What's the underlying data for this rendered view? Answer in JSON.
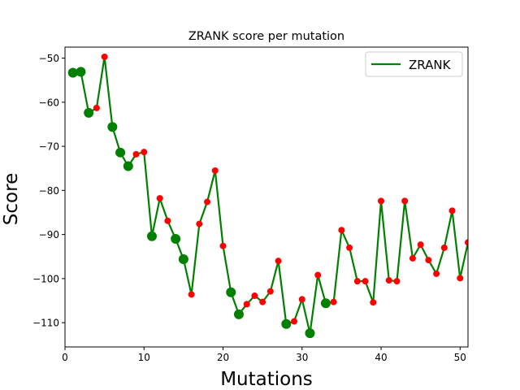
{
  "chart_data": {
    "type": "line",
    "title": "ZRANK score per mutation",
    "xlabel": "Mutations",
    "ylabel": "Score",
    "xlim": [
      0,
      51
    ],
    "ylim": [
      -115.5,
      -47.5
    ],
    "xticks": [
      0,
      10,
      20,
      30,
      40,
      50
    ],
    "yticks": [
      -110,
      -100,
      -90,
      -80,
      -70,
      -60,
      -50
    ],
    "grid": false,
    "legend_position": "top-right",
    "series": [
      {
        "name": "ZRANK",
        "color": "#008000",
        "x": [
          1,
          2,
          3,
          4,
          5,
          6,
          7,
          8,
          9,
          10,
          11,
          12,
          13,
          14,
          15,
          16,
          17,
          18,
          19,
          20,
          21,
          22,
          23,
          24,
          25,
          26,
          27,
          28,
          29,
          30,
          31,
          32,
          33,
          34,
          35,
          36,
          37,
          38,
          39,
          40,
          41,
          42,
          43,
          44,
          45,
          46,
          47,
          48,
          49,
          50,
          51
        ],
        "y": [
          -53.3,
          -53.1,
          -62.4,
          -61.3,
          -49.7,
          -65.6,
          -71.4,
          -74.5,
          -71.8,
          -71.3,
          -90.4,
          -81.8,
          -86.9,
          -91.0,
          -95.6,
          -103.6,
          -87.6,
          -82.6,
          -75.5,
          -92.6,
          -103.1,
          -108.1,
          -105.8,
          -103.9,
          -105.3,
          -102.9,
          -96.0,
          -110.3,
          -109.7,
          -104.7,
          -112.4,
          -99.2,
          -105.6,
          -105.3,
          -89.0,
          -93.0,
          -100.6,
          -100.6,
          -105.4,
          -82.4,
          -100.4,
          -100.6,
          -82.4,
          -95.4,
          -92.3,
          -95.8,
          -98.9,
          -93.0,
          -84.6,
          -99.9,
          -91.8
        ],
        "improved": [
          true,
          true,
          true,
          false,
          false,
          true,
          true,
          true,
          false,
          false,
          true,
          false,
          false,
          true,
          true,
          false,
          false,
          false,
          false,
          false,
          true,
          true,
          false,
          false,
          false,
          false,
          false,
          true,
          false,
          false,
          true,
          false,
          true,
          false,
          false,
          false,
          false,
          false,
          false,
          false,
          false,
          false,
          false,
          false,
          false,
          false,
          false,
          false,
          false,
          false,
          false
        ]
      }
    ],
    "marker_colors": {
      "improved": "#008000",
      "other": "#ff0000"
    }
  }
}
